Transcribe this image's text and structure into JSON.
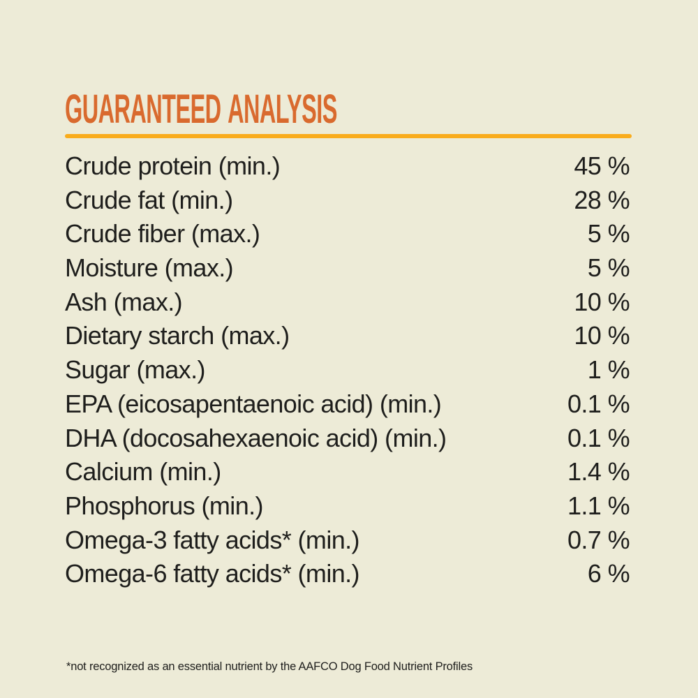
{
  "theme": {
    "background": "#EDEBD7",
    "heading_color": "#D96A2E",
    "divider_color": "#F9AC1C",
    "text_color": "#1E1E1C"
  },
  "header": {
    "title": "GUARANTEED ANALYSIS"
  },
  "table": {
    "rows": [
      {
        "label": "Crude protein (min.)",
        "value": "45 %"
      },
      {
        "label": "Crude fat (min.)",
        "value": "28 %"
      },
      {
        "label": "Crude fiber (max.)",
        "value": "5 %"
      },
      {
        "label": "Moisture (max.)",
        "value": "5 %"
      },
      {
        "label": "Ash (max.)",
        "value": "10 %"
      },
      {
        "label": "Dietary starch (max.)",
        "value": "10 %"
      },
      {
        "label": "Sugar (max.)",
        "value": "1 %"
      },
      {
        "label": "EPA (eicosapentaenoic acid) (min.)",
        "value": "0.1 %"
      },
      {
        "label": "DHA (docosahexaenoic acid) (min.)",
        "value": "0.1 %"
      },
      {
        "label": "Calcium (min.)",
        "value": "1.4 %"
      },
      {
        "label": "Phosphorus (min.)",
        "value": "1.1 %"
      },
      {
        "label": "Omega-3 fatty acids* (min.)",
        "value": "0.7 %"
      },
      {
        "label": "Omega-6 fatty acids* (min.)",
        "value": "6 %"
      }
    ]
  },
  "footnote": {
    "text": "*not recognized as an essential nutrient by the AAFCO Dog Food Nutrient Profiles"
  }
}
